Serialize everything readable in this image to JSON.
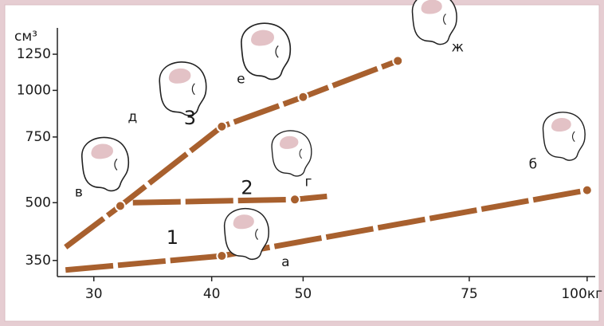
{
  "chart_data": {
    "type": "line",
    "x_unit": "кг",
    "y_unit": "см³",
    "log": true,
    "xlim": [
      27.5,
      102
    ],
    "ylim": [
      320,
      1400
    ],
    "xticks": [
      30,
      40,
      50,
      75,
      100
    ],
    "yticks": [
      350,
      500,
      750,
      1000,
      1250
    ],
    "color": "#a8602e",
    "series": [
      {
        "name": "1",
        "x": [
          28,
          41,
          100
        ],
        "values": [
          330,
          360,
          540
        ],
        "point_labels": [
          null,
          "а",
          "б"
        ]
      },
      {
        "name": "2",
        "x": [
          33,
          49,
          53
        ],
        "values": [
          500,
          510,
          520
        ],
        "point_labels": [
          null,
          "г",
          null
        ]
      },
      {
        "name": "3",
        "x": [
          28,
          32,
          41,
          50,
          63
        ],
        "values": [
          380,
          490,
          800,
          960,
          1200
        ],
        "point_labels": [
          null,
          "в",
          "д",
          "е",
          "ж"
        ]
      }
    ]
  }
}
